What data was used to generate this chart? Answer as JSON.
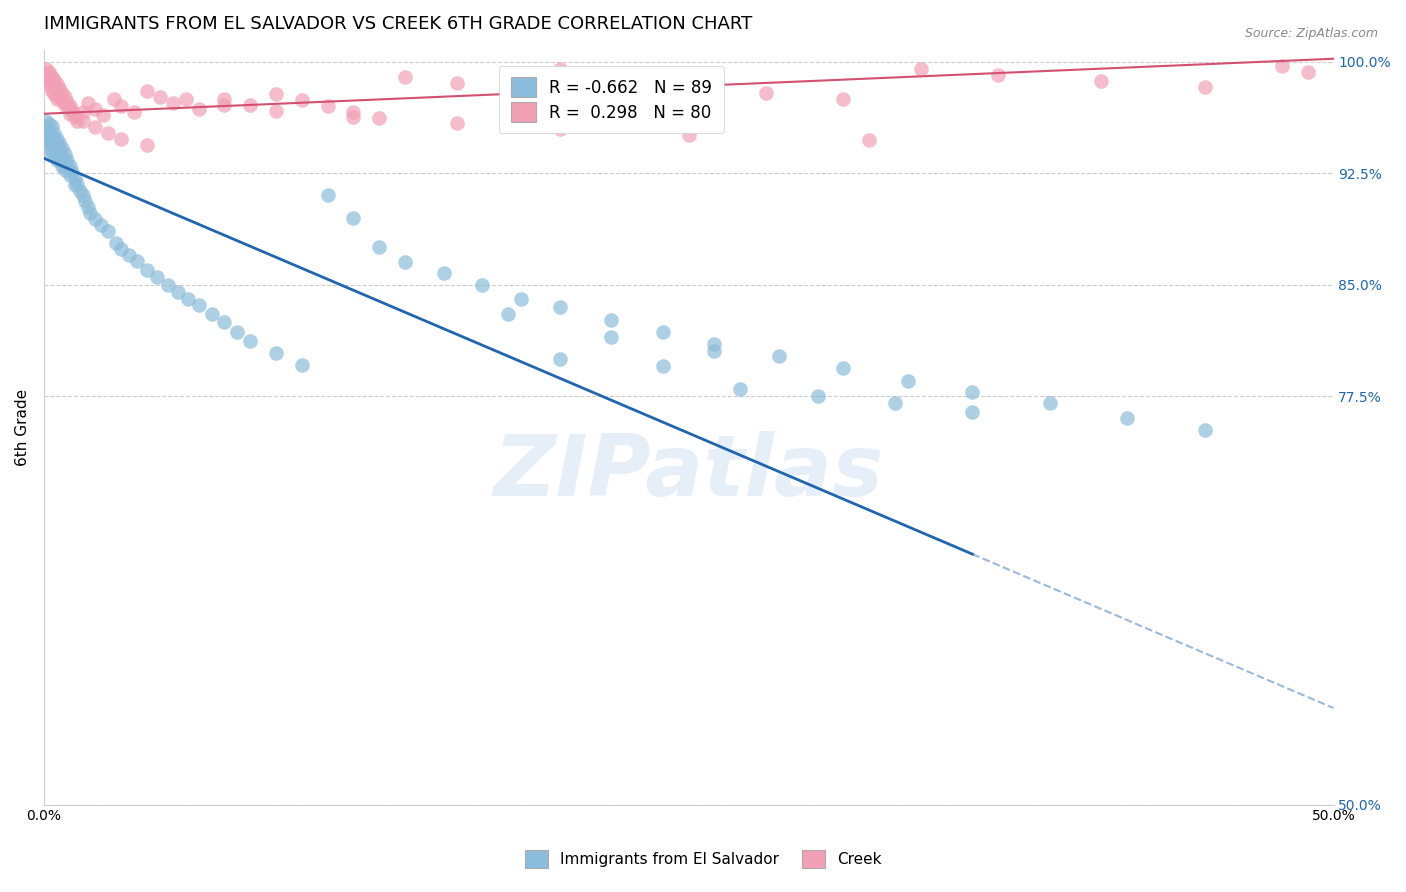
{
  "title": "IMMIGRANTS FROM EL SALVADOR VS CREEK 6TH GRADE CORRELATION CHART",
  "source": "Source: ZipAtlas.com",
  "ylabel": "6th Grade",
  "xlim": [
    0.0,
    0.5
  ],
  "ylim": [
    0.5,
    1.008
  ],
  "yticks_right": [
    0.5,
    0.775,
    0.85,
    0.925,
    1.0
  ],
  "yticklabels_right": [
    "50.0%",
    "77.5%",
    "85.0%",
    "92.5%",
    "100.0%"
  ],
  "blue_R": -0.662,
  "blue_N": 89,
  "pink_R": 0.298,
  "pink_N": 80,
  "blue_color": "#8BBCDB",
  "pink_color": "#F2A0B5",
  "blue_line_color": "#2065B0",
  "pink_line_color": "#D45070",
  "legend_label_blue": "Immigrants from El Salvador",
  "legend_label_pink": "Creek",
  "watermark": "ZIPatlas",
  "background_color": "#FFFFFF",
  "grid_color": "#CCCCCC",
  "blue_line_x0": 0.0,
  "blue_line_y0": 0.935,
  "blue_line_x1": 0.5,
  "blue_line_y1": 0.565,
  "blue_line_solid_end": 0.36,
  "pink_line_x0": 0.0,
  "pink_line_y0": 0.965,
  "pink_line_x1": 0.5,
  "pink_line_y1": 1.002,
  "blue_x": [
    0.001,
    0.001,
    0.001,
    0.001,
    0.002,
    0.002,
    0.002,
    0.002,
    0.002,
    0.003,
    0.003,
    0.003,
    0.003,
    0.004,
    0.004,
    0.004,
    0.004,
    0.005,
    0.005,
    0.005,
    0.005,
    0.006,
    0.006,
    0.006,
    0.007,
    0.007,
    0.007,
    0.008,
    0.008,
    0.008,
    0.009,
    0.009,
    0.01,
    0.01,
    0.011,
    0.012,
    0.012,
    0.013,
    0.014,
    0.015,
    0.016,
    0.017,
    0.018,
    0.02,
    0.022,
    0.025,
    0.028,
    0.03,
    0.033,
    0.036,
    0.04,
    0.044,
    0.048,
    0.052,
    0.056,
    0.06,
    0.065,
    0.07,
    0.075,
    0.08,
    0.09,
    0.1,
    0.11,
    0.12,
    0.13,
    0.14,
    0.155,
    0.17,
    0.185,
    0.2,
    0.22,
    0.24,
    0.26,
    0.285,
    0.31,
    0.335,
    0.36,
    0.39,
    0.42,
    0.45,
    0.2,
    0.24,
    0.27,
    0.3,
    0.33,
    0.36,
    0.18,
    0.22,
    0.26
  ],
  "blue_y": [
    0.96,
    0.955,
    0.952,
    0.948,
    0.958,
    0.953,
    0.95,
    0.945,
    0.94,
    0.957,
    0.95,
    0.945,
    0.94,
    0.952,
    0.947,
    0.943,
    0.938,
    0.948,
    0.943,
    0.939,
    0.934,
    0.945,
    0.94,
    0.935,
    0.942,
    0.936,
    0.93,
    0.938,
    0.933,
    0.927,
    0.934,
    0.929,
    0.93,
    0.924,
    0.926,
    0.922,
    0.917,
    0.918,
    0.913,
    0.91,
    0.906,
    0.902,
    0.898,
    0.894,
    0.89,
    0.886,
    0.878,
    0.874,
    0.87,
    0.866,
    0.86,
    0.855,
    0.85,
    0.845,
    0.84,
    0.836,
    0.83,
    0.825,
    0.818,
    0.812,
    0.804,
    0.796,
    0.91,
    0.895,
    0.875,
    0.865,
    0.858,
    0.85,
    0.84,
    0.835,
    0.826,
    0.818,
    0.81,
    0.802,
    0.794,
    0.785,
    0.778,
    0.77,
    0.76,
    0.752,
    0.8,
    0.795,
    0.78,
    0.775,
    0.77,
    0.764,
    0.83,
    0.815,
    0.805
  ],
  "pink_x": [
    0.001,
    0.001,
    0.002,
    0.002,
    0.002,
    0.003,
    0.003,
    0.003,
    0.004,
    0.004,
    0.004,
    0.005,
    0.005,
    0.005,
    0.006,
    0.006,
    0.007,
    0.007,
    0.008,
    0.008,
    0.009,
    0.01,
    0.01,
    0.011,
    0.012,
    0.013,
    0.015,
    0.017,
    0.02,
    0.023,
    0.027,
    0.03,
    0.035,
    0.04,
    0.045,
    0.05,
    0.06,
    0.07,
    0.08,
    0.09,
    0.1,
    0.11,
    0.12,
    0.13,
    0.14,
    0.16,
    0.18,
    0.2,
    0.22,
    0.24,
    0.26,
    0.28,
    0.31,
    0.34,
    0.37,
    0.41,
    0.45,
    0.48,
    0.49,
    0.002,
    0.003,
    0.004,
    0.005,
    0.006,
    0.008,
    0.01,
    0.012,
    0.015,
    0.02,
    0.025,
    0.03,
    0.04,
    0.055,
    0.07,
    0.09,
    0.12,
    0.16,
    0.2,
    0.25,
    0.32
  ],
  "pink_y": [
    0.995,
    0.99,
    0.993,
    0.988,
    0.984,
    0.99,
    0.985,
    0.98,
    0.988,
    0.983,
    0.978,
    0.985,
    0.98,
    0.975,
    0.982,
    0.977,
    0.979,
    0.974,
    0.976,
    0.971,
    0.973,
    0.97,
    0.965,
    0.967,
    0.963,
    0.96,
    0.966,
    0.972,
    0.968,
    0.964,
    0.975,
    0.97,
    0.966,
    0.98,
    0.976,
    0.972,
    0.968,
    0.975,
    0.971,
    0.978,
    0.974,
    0.97,
    0.966,
    0.962,
    0.99,
    0.986,
    0.982,
    0.995,
    0.991,
    0.987,
    0.983,
    0.979,
    0.975,
    0.995,
    0.991,
    0.987,
    0.983,
    0.997,
    0.993,
    0.992,
    0.988,
    0.984,
    0.98,
    0.976,
    0.972,
    0.968,
    0.964,
    0.96,
    0.956,
    0.952,
    0.948,
    0.944,
    0.975,
    0.971,
    0.967,
    0.963,
    0.959,
    0.955,
    0.951,
    0.947
  ]
}
